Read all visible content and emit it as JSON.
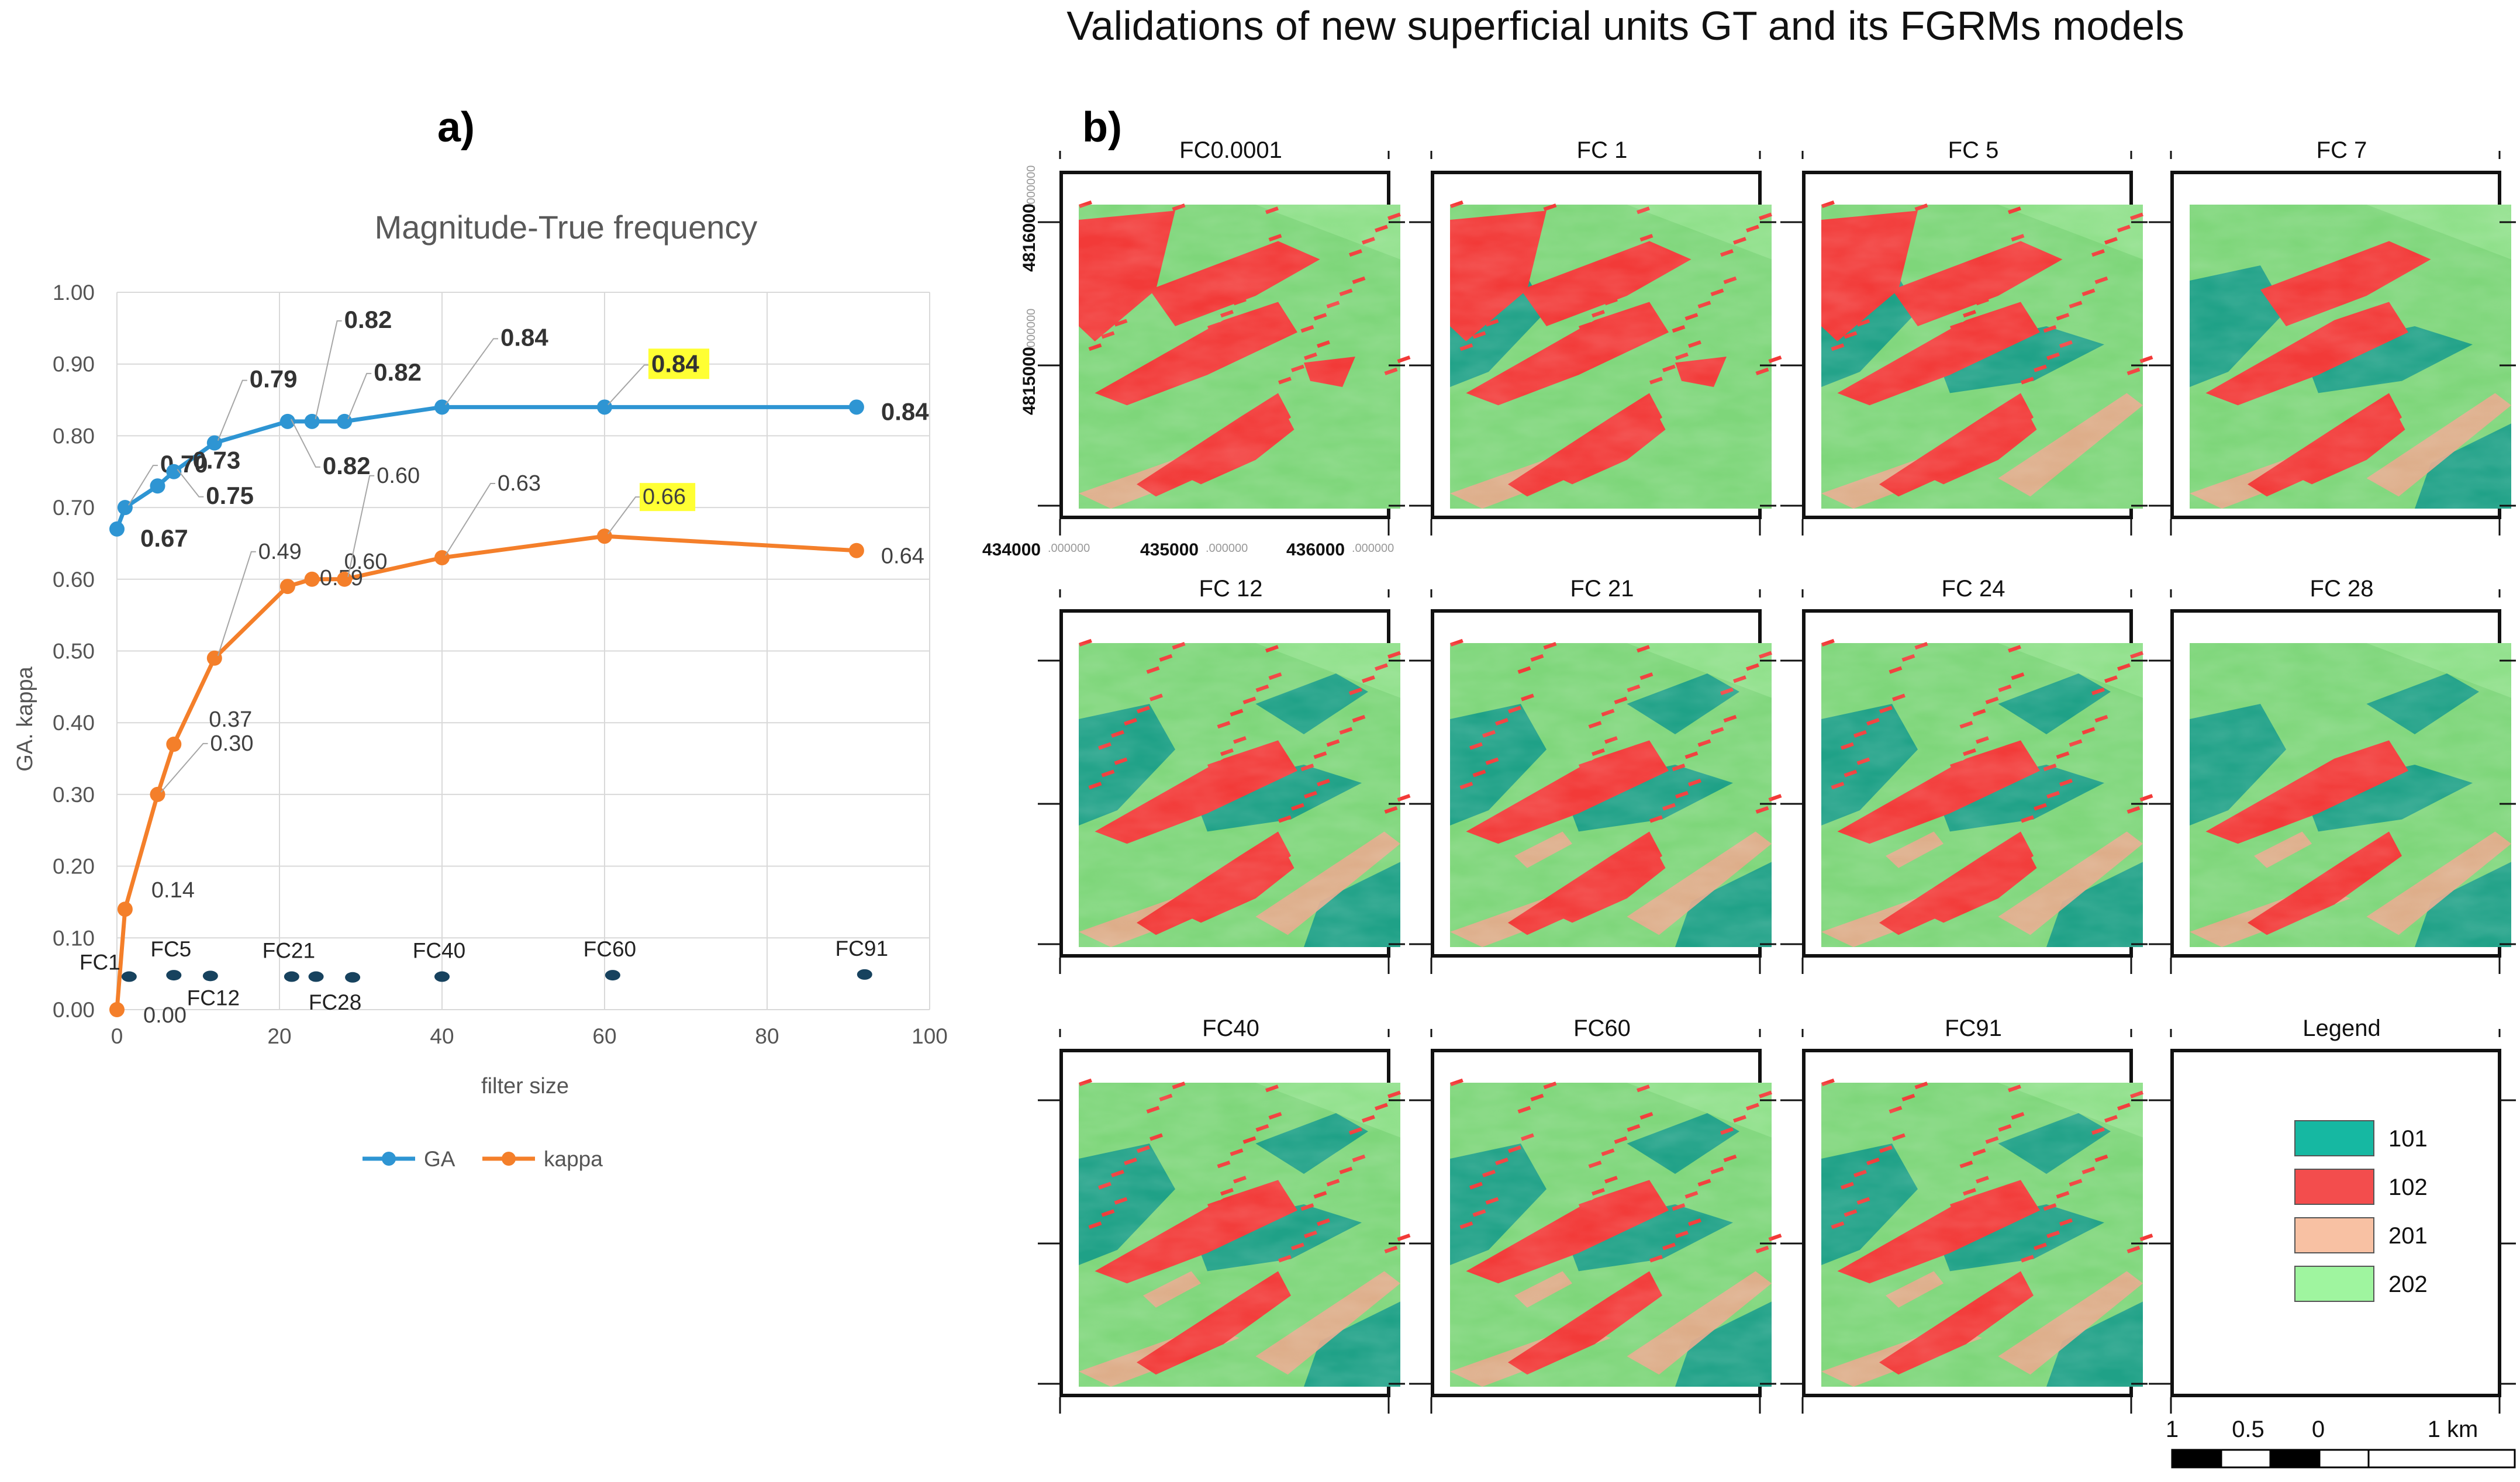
{
  "figure_title": "Validations of new superficial units GT and its FGRMs models",
  "panel_a": {
    "label": "a)",
    "chart_data": {
      "type": "line",
      "title": "Magnitude-True frequency",
      "xlabel": "filter size",
      "ylabel": "GA.  kappa",
      "xlim": [
        0,
        100
      ],
      "ylim": [
        0,
        1.0
      ],
      "xticks": [
        "0",
        "20",
        "40",
        "60",
        "80",
        "100"
      ],
      "yticks": [
        "0.00",
        "0.10",
        "0.20",
        "0.30",
        "0.40",
        "0.50",
        "0.60",
        "0.70",
        "0.80",
        "0.90",
        "1.00"
      ],
      "grid": true,
      "legend_position": "bottom",
      "series": [
        {
          "name": "GA",
          "color": "#2e95d3",
          "x": [
            0,
            1,
            5,
            7,
            12,
            21,
            24,
            28,
            40,
            60,
            91
          ],
          "values": [
            0.67,
            0.7,
            0.73,
            0.75,
            0.79,
            0.82,
            0.82,
            0.82,
            0.84,
            0.84,
            0.84
          ],
          "labels": [
            "0.67",
            "0.70",
            "0.73",
            "0.75",
            "0.79",
            "0.82",
            "0.82",
            "0.82",
            "0.84",
            "0.84",
            "0.84"
          ]
        },
        {
          "name": "kappa",
          "color": "#f47f2a",
          "x": [
            0,
            1,
            5,
            7,
            12,
            21,
            24,
            28,
            40,
            60,
            91
          ],
          "values": [
            0.0,
            0.14,
            0.3,
            0.37,
            0.49,
            0.59,
            0.6,
            0.6,
            0.63,
            0.66,
            0.64
          ],
          "labels": [
            "0.00",
            "0.14",
            "0.30",
            "0.37",
            "0.49",
            "0.59",
            "0.60",
            "0.60",
            "0.63",
            "0.66",
            "0.64"
          ]
        }
      ],
      "filter_markers": {
        "color": "#17425e",
        "points": [
          {
            "name": "FC1",
            "x": 1.5,
            "y": 0.046
          },
          {
            "name": "FC5",
            "x": 7,
            "y": 0.048
          },
          {
            "name": "FC12",
            "x": 11.5,
            "y": 0.047
          },
          {
            "name": "FC21",
            "x": 21.5,
            "y": 0.046
          },
          {
            "name": "",
            "x": 24.5,
            "y": 0.046
          },
          {
            "name": "FC28",
            "x": 29,
            "y": 0.045
          },
          {
            "name": "FC40",
            "x": 40,
            "y": 0.046
          },
          {
            "name": "FC60",
            "x": 61,
            "y": 0.048
          },
          {
            "name": "FC91",
            "x": 92,
            "y": 0.049
          }
        ]
      }
    }
  },
  "panel_b": {
    "label": "b)",
    "maps": [
      "FC0.0001",
      "FC 1",
      "FC 5",
      "FC 7",
      "FC 12",
      "FC 21",
      "FC 24",
      "FC 28",
      "FC40",
      "FC60",
      "FC91"
    ],
    "axes": {
      "y_labels": [
        {
          "main": "4816000",
          "sub": ".000000"
        },
        {
          "main": "4815000",
          "sub": ".000000"
        }
      ],
      "x_labels": [
        {
          "main": "434000",
          "sub": ".000000"
        },
        {
          "main": "435000",
          "sub": ".000000"
        },
        {
          "main": "436000",
          "sub": ".000000"
        }
      ]
    },
    "legend": {
      "title": "Legend",
      "items": [
        {
          "label": "101",
          "color": "#16b8a2"
        },
        {
          "label": "102",
          "color": "#f34d4d"
        },
        {
          "label": "201",
          "color": "#f8c1a3"
        },
        {
          "label": "202",
          "color": "#9ff59f"
        }
      ]
    },
    "scale_bar": {
      "labels": [
        "1",
        "0.5",
        "0",
        "1 km"
      ]
    },
    "class_colors": {
      "c101": "#1a9e88",
      "c102": "#f23a38",
      "c201": "#e8a88b",
      "c202": "#7ed67a"
    }
  }
}
